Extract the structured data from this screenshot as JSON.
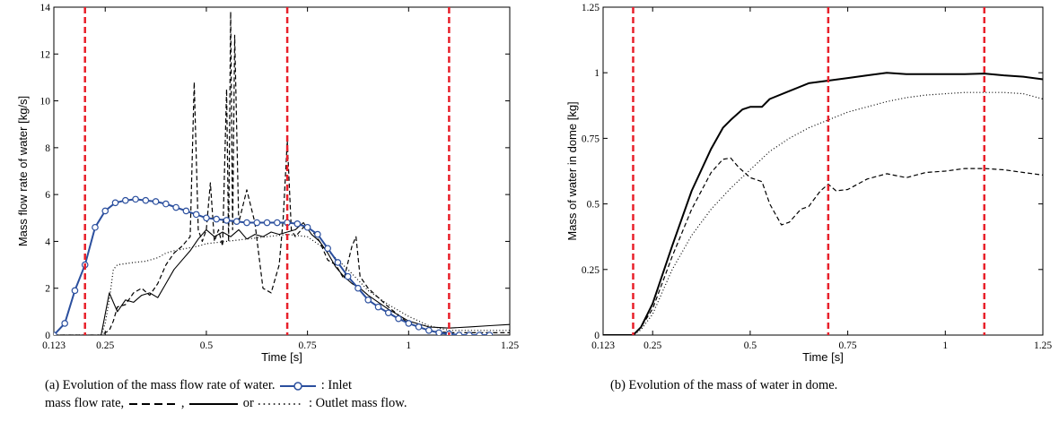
{
  "chart_data": [
    {
      "type": "line",
      "xlabel": "Time [s]",
      "ylabel": "Mass flow rate of water [kg/s]",
      "xlim": [
        0.123,
        1.25
      ],
      "ylim": [
        0,
        14
      ],
      "xticks": [
        0.123,
        0.25,
        0.5,
        0.75,
        1,
        1.25
      ],
      "xtick_labels": [
        "0.123",
        "0.25",
        "0.5",
        "0.75",
        "1",
        "1.25"
      ],
      "yticks": [
        0,
        2,
        4,
        6,
        8,
        10,
        12,
        14
      ],
      "ytick_labels": [
        "0",
        "2",
        "4",
        "6",
        "8",
        "10",
        "12",
        "14"
      ],
      "grid": false,
      "vlines": [
        0.2,
        0.7,
        1.1
      ],
      "vline_color": "#e8202a",
      "series": [
        {
          "style": "solid-circle",
          "color": "#2b4f9e",
          "x": [
            0.123,
            0.15,
            0.175,
            0.2,
            0.225,
            0.25,
            0.275,
            0.3,
            0.325,
            0.35,
            0.375,
            0.4,
            0.425,
            0.45,
            0.475,
            0.5,
            0.525,
            0.55,
            0.575,
            0.6,
            0.625,
            0.65,
            0.675,
            0.7,
            0.725,
            0.75,
            0.775,
            0.8,
            0.825,
            0.85,
            0.875,
            0.9,
            0.925,
            0.95,
            0.975,
            1.0,
            1.025,
            1.05,
            1.075,
            1.1,
            1.125,
            1.15,
            1.175,
            1.2
          ],
          "y": [
            0,
            0.5,
            1.9,
            3.0,
            4.6,
            5.3,
            5.65,
            5.75,
            5.8,
            5.75,
            5.7,
            5.6,
            5.45,
            5.3,
            5.15,
            5.0,
            4.95,
            4.9,
            4.85,
            4.8,
            4.8,
            4.8,
            4.8,
            4.8,
            4.75,
            4.6,
            4.3,
            3.7,
            3.1,
            2.5,
            2.0,
            1.5,
            1.2,
            0.95,
            0.7,
            0.5,
            0.35,
            0.2,
            0.1,
            0.05,
            0.0,
            0.0,
            0.0,
            0.0
          ]
        },
        {
          "style": "dashed",
          "color": "#000000",
          "x": [
            0.123,
            0.24,
            0.26,
            0.27,
            0.28,
            0.3,
            0.32,
            0.34,
            0.36,
            0.38,
            0.4,
            0.42,
            0.44,
            0.46,
            0.47,
            0.48,
            0.49,
            0.5,
            0.51,
            0.52,
            0.53,
            0.54,
            0.55,
            0.555,
            0.56,
            0.565,
            0.57,
            0.58,
            0.6,
            0.62,
            0.64,
            0.66,
            0.68,
            0.69,
            0.7,
            0.71,
            0.72,
            0.74,
            0.76,
            0.78,
            0.8,
            0.82,
            0.84,
            0.86,
            0.87,
            0.88,
            0.9,
            0.95,
            1.0,
            1.05,
            1.1,
            1.15,
            1.2,
            1.25
          ],
          "y": [
            0,
            0,
            0.2,
            0.6,
            1.2,
            1.3,
            1.8,
            2.0,
            1.7,
            2.2,
            3.0,
            3.5,
            3.8,
            4.2,
            10.8,
            4.5,
            4.0,
            4.5,
            6.5,
            4.0,
            4.5,
            3.8,
            10.5,
            4.0,
            13.8,
            4.5,
            12.8,
            4.8,
            6.2,
            4.8,
            2.0,
            1.8,
            3.0,
            5.0,
            8.3,
            4.5,
            4.2,
            4.6,
            4.5,
            4.0,
            3.2,
            3.0,
            2.4,
            3.8,
            4.2,
            2.5,
            2.0,
            1.2,
            0.5,
            0.2,
            0.1,
            0.1,
            0.1,
            0.1
          ]
        },
        {
          "style": "solid",
          "color": "#000000",
          "x": [
            0.123,
            0.24,
            0.26,
            0.28,
            0.3,
            0.32,
            0.34,
            0.36,
            0.38,
            0.4,
            0.42,
            0.44,
            0.46,
            0.48,
            0.5,
            0.52,
            0.54,
            0.56,
            0.58,
            0.6,
            0.62,
            0.64,
            0.66,
            0.68,
            0.7,
            0.72,
            0.74,
            0.76,
            0.78,
            0.8,
            0.82,
            0.84,
            0.86,
            0.88,
            0.9,
            0.95,
            1.0,
            1.05,
            1.1,
            1.15,
            1.2,
            1.25
          ],
          "y": [
            0,
            0,
            1.8,
            1.0,
            1.5,
            1.4,
            1.7,
            1.8,
            1.6,
            2.2,
            2.8,
            3.2,
            3.6,
            4.1,
            4.5,
            4.2,
            4.4,
            4.2,
            4.5,
            4.1,
            4.3,
            4.2,
            4.4,
            4.3,
            4.4,
            4.5,
            4.8,
            4.3,
            4.0,
            3.5,
            2.9,
            2.5,
            2.2,
            2.0,
            1.7,
            1.1,
            0.6,
            0.35,
            0.3,
            0.35,
            0.4,
            0.45
          ]
        },
        {
          "style": "dotted",
          "color": "#000000",
          "x": [
            0.123,
            0.24,
            0.25,
            0.26,
            0.27,
            0.28,
            0.3,
            0.32,
            0.35,
            0.38,
            0.4,
            0.42,
            0.45,
            0.48,
            0.5,
            0.55,
            0.6,
            0.65,
            0.7,
            0.75,
            0.8,
            0.85,
            0.9,
            0.95,
            1.0,
            1.05,
            1.1,
            1.15,
            1.2,
            1.25
          ],
          "y": [
            0,
            0,
            0.5,
            1.5,
            2.8,
            3.0,
            3.05,
            3.1,
            3.15,
            3.3,
            3.5,
            3.6,
            3.7,
            3.8,
            3.9,
            4.0,
            4.1,
            4.2,
            4.3,
            4.2,
            3.6,
            2.8,
            1.9,
            1.3,
            0.8,
            0.4,
            0.2,
            0.2,
            0.2,
            0.2
          ]
        }
      ]
    },
    {
      "type": "line",
      "xlabel": "Time [s]",
      "ylabel": "Mass of water in dome [kg]",
      "xlim": [
        0.123,
        1.25
      ],
      "ylim": [
        0,
        1.25
      ],
      "xticks": [
        0.123,
        0.25,
        0.5,
        0.75,
        1,
        1.25
      ],
      "xtick_labels": [
        "0.123",
        "0.25",
        "0.5",
        "0.75",
        "1",
        "1.25"
      ],
      "yticks": [
        0,
        0.25,
        0.5,
        0.75,
        1,
        1.25
      ],
      "ytick_labels": [
        "0",
        "0.25",
        "0.5",
        "0.75",
        "1",
        "1.25"
      ],
      "grid": false,
      "vlines": [
        0.2,
        0.7,
        1.1
      ],
      "vline_color": "#e8202a",
      "series": [
        {
          "style": "solid",
          "color": "#000000",
          "x": [
            0.123,
            0.2,
            0.22,
            0.25,
            0.3,
            0.35,
            0.4,
            0.43,
            0.45,
            0.48,
            0.5,
            0.53,
            0.55,
            0.6,
            0.65,
            0.7,
            0.75,
            0.8,
            0.85,
            0.9,
            0.95,
            1.0,
            1.05,
            1.1,
            1.15,
            1.2,
            1.25
          ],
          "y": [
            0,
            0,
            0.03,
            0.12,
            0.34,
            0.55,
            0.71,
            0.79,
            0.82,
            0.86,
            0.87,
            0.87,
            0.9,
            0.93,
            0.96,
            0.97,
            0.98,
            0.99,
            1.0,
            0.995,
            0.995,
            0.995,
            0.995,
            0.997,
            0.99,
            0.985,
            0.975
          ]
        },
        {
          "style": "dashed",
          "color": "#000000",
          "x": [
            0.123,
            0.2,
            0.22,
            0.25,
            0.3,
            0.35,
            0.4,
            0.43,
            0.45,
            0.47,
            0.5,
            0.53,
            0.55,
            0.58,
            0.6,
            0.63,
            0.65,
            0.68,
            0.7,
            0.72,
            0.75,
            0.8,
            0.85,
            0.9,
            0.95,
            1.0,
            1.05,
            1.1,
            1.15,
            1.2,
            1.25
          ],
          "y": [
            0,
            0,
            0.03,
            0.1,
            0.3,
            0.48,
            0.62,
            0.67,
            0.675,
            0.64,
            0.6,
            0.585,
            0.5,
            0.42,
            0.43,
            0.48,
            0.49,
            0.55,
            0.575,
            0.55,
            0.555,
            0.595,
            0.615,
            0.6,
            0.62,
            0.625,
            0.635,
            0.635,
            0.63,
            0.62,
            0.61
          ]
        },
        {
          "style": "dotted",
          "color": "#000000",
          "x": [
            0.123,
            0.2,
            0.22,
            0.25,
            0.3,
            0.35,
            0.4,
            0.45,
            0.5,
            0.55,
            0.6,
            0.65,
            0.7,
            0.75,
            0.8,
            0.85,
            0.9,
            0.95,
            1.0,
            1.05,
            1.1,
            1.15,
            1.2,
            1.25
          ],
          "y": [
            0,
            0,
            0.02,
            0.08,
            0.25,
            0.38,
            0.48,
            0.56,
            0.63,
            0.7,
            0.75,
            0.79,
            0.82,
            0.85,
            0.87,
            0.89,
            0.905,
            0.915,
            0.92,
            0.925,
            0.925,
            0.925,
            0.92,
            0.9
          ]
        }
      ]
    }
  ],
  "captions": {
    "a_line1_before_sym": "(a) Evolution of the mass flow rate of water.",
    "a_line1_after_sym": ": Inlet",
    "a_line2_start": "mass flow rate,",
    "a_line2_comma": ",",
    "a_line2_or": "or",
    "a_line2_end": ": Outlet mass flow.",
    "b": "(b) Evolution of the mass of water in dome."
  }
}
